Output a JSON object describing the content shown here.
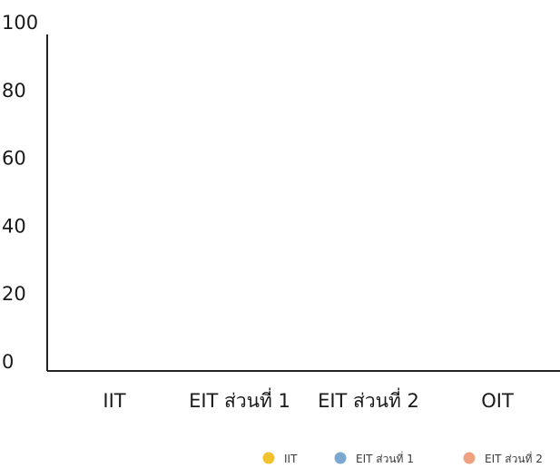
{
  "chart_data": {
    "type": "bar",
    "title": "",
    "xlabel": "",
    "ylabel": "",
    "categories": [
      "IIT",
      "EIT ส่วนที่ 1",
      "EIT ส่วนที่ 2",
      "OIT"
    ],
    "ylim": [
      0,
      100
    ],
    "yticks": [
      0,
      20,
      40,
      60,
      80,
      100
    ],
    "series": [
      {
        "name": "IIT",
        "color": "#f2c12e",
        "values": [
          0,
          0,
          0,
          0
        ]
      },
      {
        "name": "EIT ส่วนที่ 1",
        "color": "#7ba7d1",
        "values": [
          0,
          0,
          0,
          0
        ]
      },
      {
        "name": "EIT ส่วนที่ 2",
        "color": "#eea27f",
        "values": [
          0,
          0,
          0,
          0
        ]
      }
    ],
    "grid": false,
    "legend": "bottom-right"
  }
}
